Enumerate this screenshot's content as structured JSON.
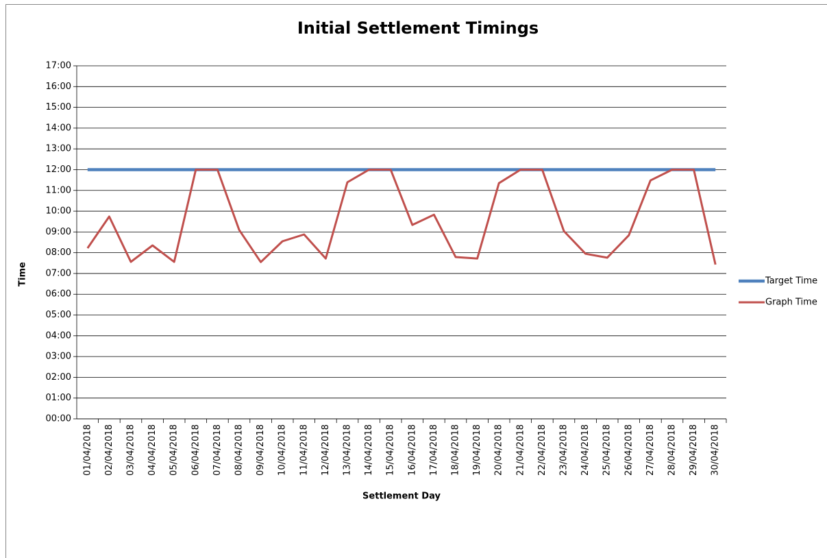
{
  "chart_data": {
    "type": "line",
    "title": "Initial Settlement Timings",
    "x_label": "Settlement Day",
    "y_label": "Time",
    "categories": [
      "01/04/2018",
      "02/04/2018",
      "03/04/2018",
      "04/04/2018",
      "05/04/2018",
      "06/04/2018",
      "07/04/2018",
      "08/04/2018",
      "09/04/2018",
      "10/04/2018",
      "11/04/2018",
      "12/04/2018",
      "13/04/2018",
      "14/04/2018",
      "15/04/2018",
      "16/04/2018",
      "17/04/2018",
      "18/04/2018",
      "19/04/2018",
      "20/04/2018",
      "21/04/2018",
      "22/04/2018",
      "23/04/2018",
      "24/04/2018",
      "25/04/2018",
      "26/04/2018",
      "27/04/2018",
      "28/04/2018",
      "29/04/2018",
      "30/04/2018"
    ],
    "series": [
      {
        "name": "Target Time",
        "color": "#4f81bd",
        "values": [
          12,
          12,
          12,
          12,
          12,
          12,
          12,
          12,
          12,
          12,
          12,
          12,
          12,
          12,
          12,
          12,
          12,
          12,
          12,
          12,
          12,
          12,
          12,
          12,
          12,
          12,
          12,
          12,
          12,
          12
        ]
      },
      {
        "name": "Graph Time",
        "color": "#c0504d",
        "values": [
          8.22,
          9.74,
          7.56,
          8.35,
          7.56,
          12,
          12,
          9.1,
          7.55,
          8.55,
          8.88,
          7.72,
          11.39,
          12,
          12,
          9.34,
          9.83,
          7.79,
          7.72,
          11.35,
          12,
          12,
          9.04,
          7.95,
          7.76,
          8.84,
          11.48,
          12,
          12,
          7.43
        ]
      }
    ],
    "ylim": [
      0,
      17
    ],
    "yticks": [
      {
        "value": 0,
        "label": "00:00"
      },
      {
        "value": 1,
        "label": "01:00"
      },
      {
        "value": 2,
        "label": "02:00"
      },
      {
        "value": 3,
        "label": "03:00"
      },
      {
        "value": 4,
        "label": "04:00"
      },
      {
        "value": 5,
        "label": "05:00"
      },
      {
        "value": 6,
        "label": "06:00"
      },
      {
        "value": 7,
        "label": "07:00"
      },
      {
        "value": 8,
        "label": "08:00"
      },
      {
        "value": 9,
        "label": "09:00"
      },
      {
        "value": 10,
        "label": "10:00"
      },
      {
        "value": 11,
        "label": "11:00"
      },
      {
        "value": 12,
        "label": "12:00"
      },
      {
        "value": 13,
        "label": "13:00"
      },
      {
        "value": 14,
        "label": "14:00"
      },
      {
        "value": 15,
        "label": "15:00"
      },
      {
        "value": 16,
        "label": "16:00"
      },
      {
        "value": 17,
        "label": "17:00"
      }
    ],
    "grid": true,
    "legend": "right"
  }
}
